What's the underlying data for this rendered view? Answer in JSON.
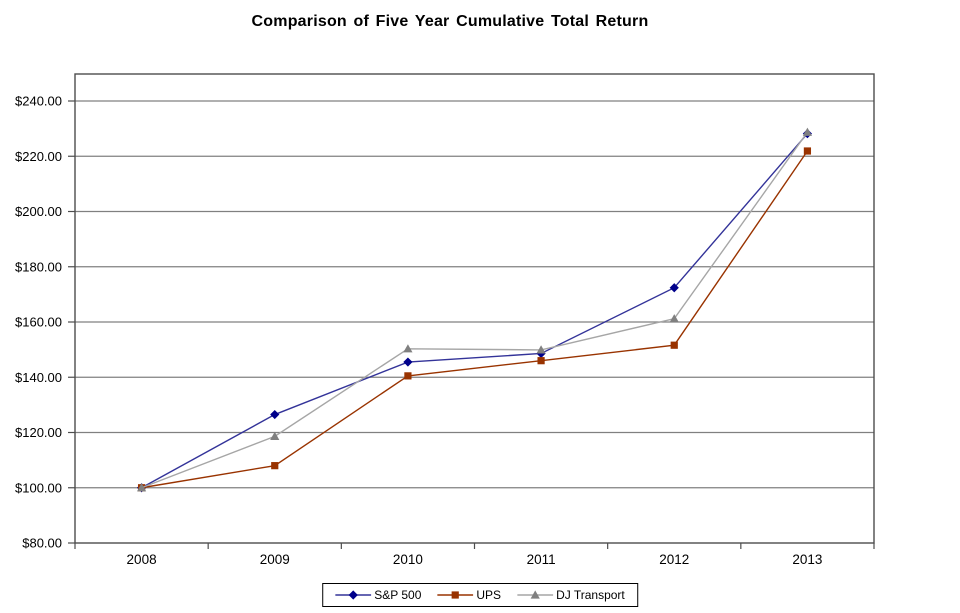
{
  "chart_data": {
    "type": "line",
    "title": "Comparison of Five Year Cumulative Total Return",
    "categories": [
      "2008",
      "2009",
      "2010",
      "2011",
      "2012",
      "2013"
    ],
    "series": [
      {
        "name": "S&P 500",
        "marker": "diamond",
        "line_color": "#333399",
        "marker_color": "#00008B",
        "values": [
          100.0,
          126.5,
          145.5,
          148.6,
          172.4,
          228.2
        ]
      },
      {
        "name": "UPS",
        "marker": "square",
        "line_color": "#993300",
        "marker_color": "#993300",
        "values": [
          100.0,
          108.0,
          140.5,
          146.0,
          151.6,
          221.9
        ]
      },
      {
        "name": "DJ Transport",
        "marker": "triangle",
        "line_color": "#A6A6A6",
        "marker_color": "#808080",
        "values": [
          100.0,
          118.6,
          150.3,
          149.9,
          161.2,
          228.7
        ]
      }
    ],
    "y_axis": {
      "min": 80,
      "max": 240,
      "step": 20,
      "tick_labels": [
        "$80.00",
        "$100.00",
        "$120.00",
        "$140.00",
        "$160.00",
        "$180.00",
        "$200.00",
        "$220.00",
        "$240.00"
      ]
    },
    "x_axis": {
      "tick_labels": [
        "2008",
        "2009",
        "2010",
        "2011",
        "2012",
        "2013"
      ]
    },
    "grid": true,
    "legend_position": "bottom"
  },
  "colors": {
    "background": "#FFFFFF",
    "gridline": "#808080",
    "axis_border": "#4D4D4D",
    "text": "#000000"
  }
}
